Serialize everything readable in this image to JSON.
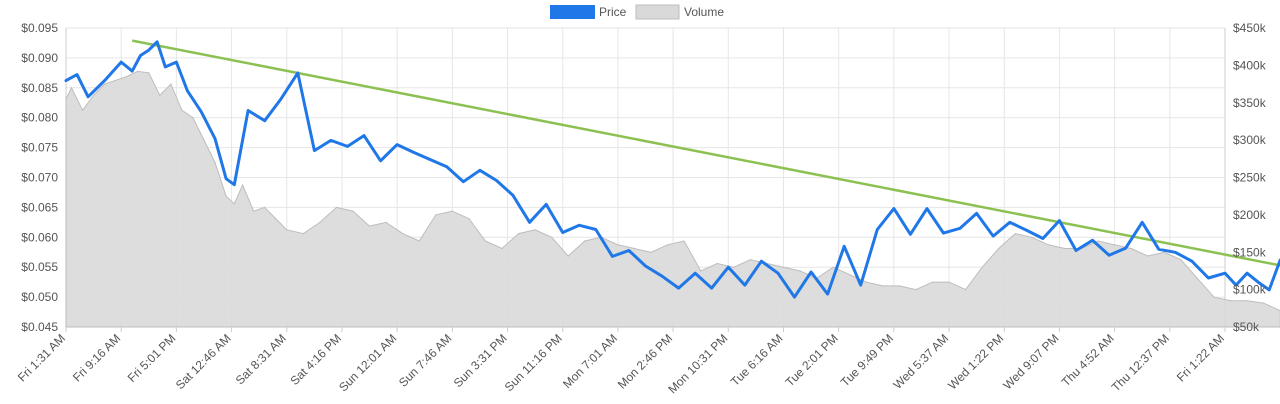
{
  "chart_data": {
    "type": "line",
    "legend": {
      "position": "top-center",
      "items": [
        "Price",
        "Volume"
      ]
    },
    "colors": {
      "price": "#1f77e8",
      "volume_fill": "#d9d9d9",
      "volume_stroke": "#bdbdbd",
      "trend": "#8cc152",
      "grid": "#e6e6e6"
    },
    "grid": true,
    "x_categories": [
      "Fri 1:31 AM",
      "Fri 9:16 AM",
      "Fri 5:01 PM",
      "Sat 12:46 AM",
      "Sat 8:31 AM",
      "Sat 4:16 PM",
      "Sun 12:01 AM",
      "Sun 7:46 AM",
      "Sun 3:31 PM",
      "Sun 11:16 PM",
      "Mon 7:01 AM",
      "Mon 2:46 PM",
      "Mon 10:31 PM",
      "Tue 6:16 AM",
      "Tue 2:01 PM",
      "Tue 9:49 PM",
      "Wed 5:37 AM",
      "Wed 1:22 PM",
      "Wed 9:07 PM",
      "Thu 4:52 AM",
      "Thu 12:37 PM",
      "Fri 1:22 AM"
    ],
    "y_left": {
      "ticks": [
        "$0.095",
        "$0.090",
        "$0.085",
        "$0.080",
        "$0.075",
        "$0.070",
        "$0.065",
        "$0.060",
        "$0.055",
        "$0.050",
        "$0.045"
      ],
      "min": 0.045,
      "max": 0.095
    },
    "y_right": {
      "ticks": [
        "$450k",
        "$400k",
        "$350k",
        "$300k",
        "$250k",
        "$200k",
        "$150k",
        "$100k",
        "$50k"
      ],
      "min": 50000,
      "max": 450000
    },
    "series": [
      {
        "name": "Price",
        "axis": "left",
        "x": [
          0,
          0.2,
          0.4,
          0.7,
          1,
          1.2,
          1.35,
          1.5,
          1.65,
          1.8,
          2,
          2.2,
          2.45,
          2.7,
          2.9,
          3.05,
          3.3,
          3.6,
          3.9,
          4.2,
          4.5,
          4.8,
          5.1,
          5.4,
          5.7,
          6,
          6.3,
          6.6,
          6.9,
          7.2,
          7.5,
          7.8,
          8.1,
          8.4,
          8.7,
          9,
          9.3,
          9.6,
          9.9,
          10.2,
          10.5,
          10.8,
          11.1,
          11.4,
          11.7,
          12,
          12.3,
          12.6,
          12.9,
          13.2,
          13.5,
          13.8,
          14.1,
          14.4,
          14.7,
          15,
          15.3,
          15.6,
          15.9,
          16.2,
          16.5,
          16.8,
          17.1,
          17.4,
          17.7,
          18,
          18.3,
          18.6,
          18.9,
          19.2,
          19.5,
          19.8,
          20.1,
          20.4,
          20.7,
          21,
          21.2,
          21.4,
          21.6,
          21.8,
          22
        ],
        "y": [
          0.0862,
          0.0872,
          0.0835,
          0.0862,
          0.0893,
          0.0878,
          0.0904,
          0.0913,
          0.0927,
          0.0885,
          0.0893,
          0.0845,
          0.081,
          0.0765,
          0.0698,
          0.0688,
          0.0812,
          0.0795,
          0.0832,
          0.0875,
          0.0745,
          0.0762,
          0.0752,
          0.077,
          0.0728,
          0.0755,
          0.0742,
          0.073,
          0.0718,
          0.0693,
          0.0712,
          0.0695,
          0.067,
          0.0625,
          0.0655,
          0.0608,
          0.062,
          0.0613,
          0.0568,
          0.0578,
          0.0552,
          0.0535,
          0.0515,
          0.054,
          0.0515,
          0.055,
          0.052,
          0.056,
          0.054,
          0.05,
          0.0542,
          0.0505,
          0.0585,
          0.052,
          0.0613,
          0.0648,
          0.0605,
          0.0648,
          0.0607,
          0.0615,
          0.064,
          0.0602,
          0.0625,
          0.0612,
          0.0598,
          0.0628,
          0.0578,
          0.0595,
          0.057,
          0.0582,
          0.0625,
          0.058,
          0.0575,
          0.056,
          0.0532,
          0.054,
          0.052,
          0.054,
          0.0525,
          0.0512,
          0.0562
        ]
      },
      {
        "name": "Volume",
        "axis": "right",
        "x": [
          0,
          0.1,
          0.3,
          0.5,
          0.7,
          0.9,
          1.1,
          1.3,
          1.5,
          1.7,
          1.9,
          2.1,
          2.3,
          2.5,
          2.7,
          2.9,
          3.05,
          3.2,
          3.4,
          3.6,
          3.8,
          4,
          4.3,
          4.6,
          4.9,
          5.2,
          5.5,
          5.8,
          6.1,
          6.4,
          6.7,
          7,
          7.3,
          7.6,
          7.9,
          8.2,
          8.5,
          8.8,
          9.1,
          9.4,
          9.7,
          10,
          10.3,
          10.6,
          10.9,
          11.2,
          11.5,
          11.8,
          12.1,
          12.4,
          12.7,
          13,
          13.3,
          13.6,
          13.9,
          14.2,
          14.5,
          14.8,
          15.1,
          15.4,
          15.7,
          16,
          16.3,
          16.6,
          16.9,
          17.2,
          17.5,
          17.8,
          18.1,
          18.4,
          18.7,
          19,
          19.3,
          19.6,
          19.9,
          20.2,
          20.5,
          20.8,
          21.1,
          21.4,
          21.7,
          22
        ],
        "y": [
          355000,
          370000,
          340000,
          360000,
          375000,
          380000,
          385000,
          392000,
          390000,
          360000,
          375000,
          340000,
          330000,
          300000,
          270000,
          225000,
          215000,
          240000,
          205000,
          210000,
          195000,
          180000,
          175000,
          190000,
          210000,
          205000,
          185000,
          190000,
          175000,
          165000,
          200000,
          205000,
          195000,
          165000,
          155000,
          175000,
          180000,
          170000,
          145000,
          165000,
          170000,
          160000,
          155000,
          150000,
          160000,
          165000,
          125000,
          135000,
          130000,
          140000,
          135000,
          130000,
          125000,
          115000,
          130000,
          120000,
          110000,
          105000,
          105000,
          100000,
          110000,
          110000,
          100000,
          130000,
          155000,
          175000,
          170000,
          160000,
          155000,
          155000,
          165000,
          160000,
          155000,
          145000,
          150000,
          140000,
          115000,
          90000,
          85000,
          85000,
          82000,
          72000
        ]
      },
      {
        "name": "Trendline",
        "axis": "left",
        "x": [
          1.2,
          22
        ],
        "y": [
          0.0929,
          0.0553
        ]
      }
    ]
  }
}
